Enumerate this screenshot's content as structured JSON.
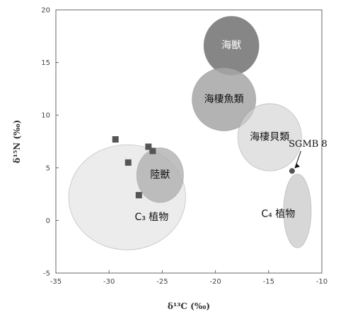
{
  "chart_data": {
    "type": "scatter",
    "xlabel": "δ¹³C (‰)",
    "ylabel": "δ¹⁵N (‰)",
    "xlim": [
      -35,
      -10
    ],
    "ylim": [
      -5,
      20
    ],
    "x_ticks": [
      -35,
      -30,
      -25,
      -20,
      -15,
      -10
    ],
    "y_ticks": [
      -5,
      0,
      5,
      10,
      15,
      20
    ],
    "x_tick_labels": [
      "-35",
      "-30",
      "-25",
      "-20",
      "-15",
      "-10"
    ],
    "y_tick_labels": [
      "-5",
      "0",
      "5",
      "10",
      "15",
      "20"
    ],
    "grid": false,
    "regions": [
      {
        "label": "C₃ 植物",
        "cx": -28.3,
        "cy": 2.2,
        "rx": 5.5,
        "ry": 5.0,
        "rotation": 0,
        "color": "#dcdcdc",
        "opacity": 0.55,
        "label_x": -26.0,
        "label_y": 0.3,
        "light_text": false
      },
      {
        "label": "陸獣",
        "cx": -25.2,
        "cy": 4.3,
        "rx": 2.2,
        "ry": 2.6,
        "rotation": 0,
        "color": "#b0b0b0",
        "opacity": 0.8,
        "label_x": -25.2,
        "label_y": 4.3,
        "light_text": false
      },
      {
        "label": "海獣",
        "cx": -18.5,
        "cy": 16.6,
        "rx": 2.6,
        "ry": 2.8,
        "rotation": 0,
        "color": "#7f7f7f",
        "opacity": 0.95,
        "label_x": -18.5,
        "label_y": 16.6,
        "light_text": true
      },
      {
        "label": "海棲魚類",
        "cx": -19.2,
        "cy": 11.5,
        "rx": 3.0,
        "ry": 3.0,
        "rotation": 0,
        "color": "#a6a6a6",
        "opacity": 0.85,
        "label_x": -19.2,
        "label_y": 11.5,
        "light_text": false
      },
      {
        "label": "海棲貝類",
        "cx": -14.9,
        "cy": 7.9,
        "rx": 3.0,
        "ry": 3.2,
        "rotation": 0,
        "color": "#d2d2d2",
        "opacity": 0.65,
        "label_x": -14.9,
        "label_y": 7.9,
        "light_text": false
      },
      {
        "label": "C₄ 植物",
        "cx": -12.3,
        "cy": 0.9,
        "rx": 1.3,
        "ry": 3.5,
        "rotation": 0,
        "color": "#cacaca",
        "opacity": 0.75,
        "label_x": -14.1,
        "label_y": 0.6,
        "light_text": false
      }
    ],
    "series": [
      {
        "marker": "square",
        "color": "#555555",
        "points": [
          [
            -29.4,
            7.7
          ],
          [
            -28.2,
            5.5
          ],
          [
            -26.3,
            7.0
          ],
          [
            -25.9,
            6.6
          ],
          [
            -27.2,
            2.4
          ]
        ]
      },
      {
        "marker": "circle",
        "color": "#555555",
        "points": [
          [
            -12.8,
            4.7
          ]
        ]
      }
    ],
    "annotations": [
      {
        "text": "SGMB 8",
        "point": [
          -12.8,
          4.7
        ],
        "text_x": -11.3,
        "text_y": 7.0
      }
    ]
  }
}
